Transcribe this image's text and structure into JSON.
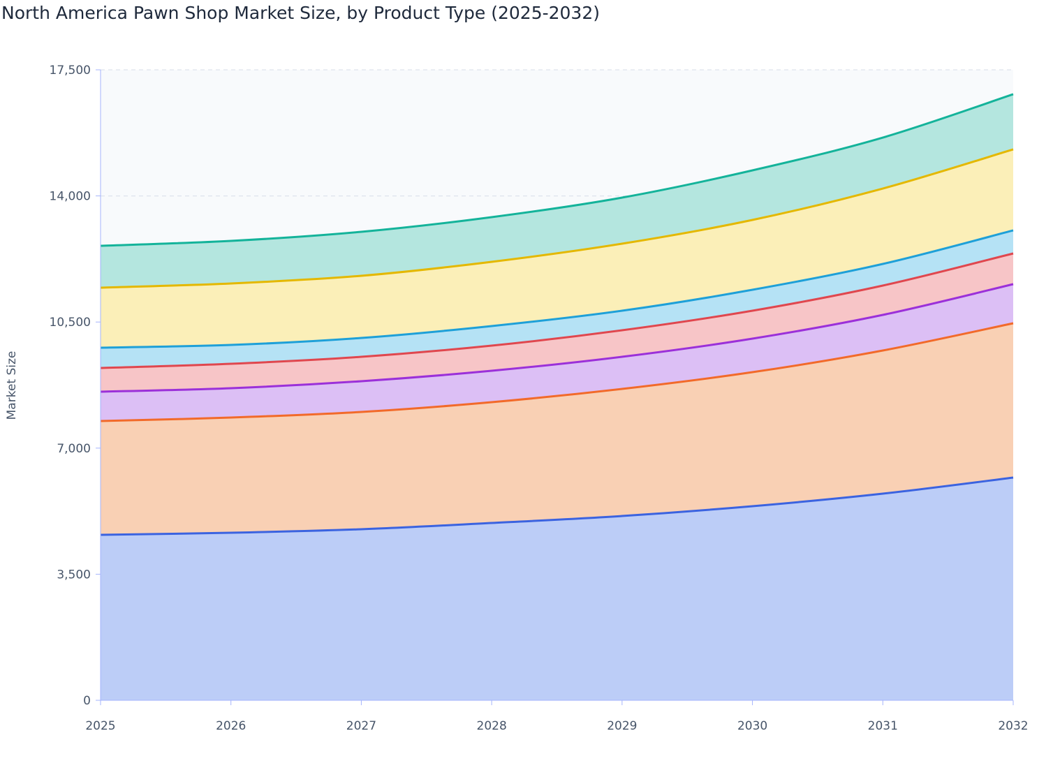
{
  "chart_data": {
    "type": "area",
    "stacked": true,
    "title": "North America Pawn Shop Market Size, by Product Type (2025-2032)",
    "xlabel": "",
    "ylabel": "Market Size",
    "x": [
      "2025",
      "2026",
      "2027",
      "2028",
      "2029",
      "2030",
      "2031",
      "2032"
    ],
    "ylim": [
      0,
      17500
    ],
    "yticks": [
      "0",
      "3,500",
      "7,000",
      "10,500",
      "14,000",
      "17,500"
    ],
    "ytick_values": [
      0,
      3500,
      7000,
      10500,
      14000,
      17500
    ],
    "grid": "horizontal dashed",
    "legend": "none",
    "series": [
      {
        "values": [
          4593,
          4651,
          4748,
          4922,
          5116,
          5388,
          5736,
          6182
        ],
        "line": "#3b63e0",
        "fill": "#bccdf7"
      },
      {
        "values": [
          3159,
          3198,
          3256,
          3353,
          3527,
          3720,
          3973,
          4283
        ],
        "line": "#f26a2a",
        "fill": "#f9d0b4"
      },
      {
        "values": [
          814,
          814,
          853,
          872,
          892,
          931,
          989,
          1085
        ],
        "line": "#9b30d9",
        "fill": "#dcbff5"
      },
      {
        "values": [
          659,
          678,
          678,
          698,
          736,
          775,
          814,
          853
        ],
        "line": "#e0474e",
        "fill": "#f7c5c7"
      },
      {
        "values": [
          562,
          523,
          523,
          543,
          543,
          581,
          600,
          640
        ],
        "line": "#1ea0d8",
        "fill": "#b5e2f5"
      },
      {
        "values": [
          1666,
          1706,
          1725,
          1783,
          1860,
          1938,
          2093,
          2248
        ],
        "line": "#e4b800",
        "fill": "#fbefb8"
      },
      {
        "values": [
          1163,
          1182,
          1221,
          1240,
          1279,
          1376,
          1415,
          1531
        ],
        "line": "#14b39a",
        "fill": "#b4e6df"
      }
    ]
  }
}
